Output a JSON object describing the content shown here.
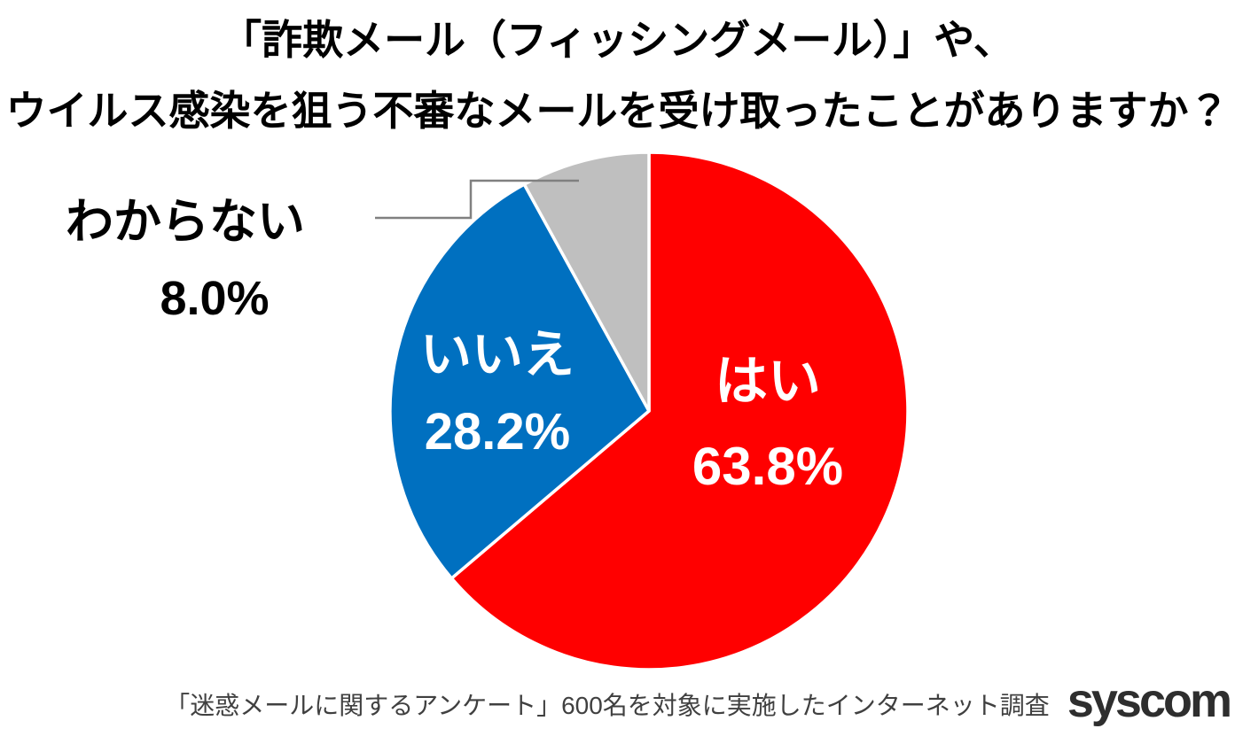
{
  "title": {
    "line1": "「詐欺メール（フィッシングメール）」や、",
    "line2": "ウイルス感染を狙う不審なメールを受け取ったことがありますか？"
  },
  "chart_data": {
    "type": "pie",
    "title": "「詐欺メール（フィッシングメール）」や、ウイルス感染を狙う不審なメールを受け取ったことがありますか？",
    "start_angle_deg": 0,
    "direction": "clockwise",
    "legend": "none",
    "categories": [
      "はい",
      "いいえ",
      "わからない"
    ],
    "values": [
      63.8,
      28.2,
      8.0
    ],
    "slices": [
      {
        "id": "yes",
        "label": "はい",
        "value": 63.8,
        "display": "63.8%",
        "color": "#FF0000",
        "text_color": "#FFFFFF",
        "label_position": "inside"
      },
      {
        "id": "no",
        "label": "いいえ",
        "value": 28.2,
        "display": "28.2%",
        "color": "#0070C0",
        "text_color": "#FFFFFF",
        "label_position": "inside"
      },
      {
        "id": "dontknow",
        "label": "わからない",
        "value": 8.0,
        "display": "8.0%",
        "color": "#BFBFBF",
        "text_color": "#000000",
        "label_position": "outside-left",
        "leader_line": true
      }
    ]
  },
  "footer": {
    "note": "「迷惑メールに関するアンケート」600名を対象に実施したインターネット調査",
    "logo": "syscom"
  },
  "colors": {
    "background": "#FFFFFF",
    "slice_yes": "#FF0000",
    "slice_no": "#0070C0",
    "slice_dontknow": "#BFBFBF",
    "slice_border": "#FFFFFF",
    "leader_line": "#808080",
    "title_text": "#000000",
    "footer_text": "#404040",
    "logo_text": "#2E2E2E"
  }
}
